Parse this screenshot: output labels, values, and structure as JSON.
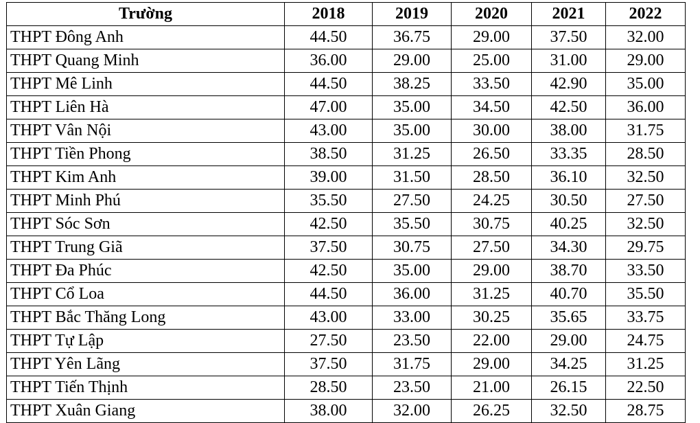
{
  "table": {
    "headers": [
      "Trường",
      "2018",
      "2019",
      "2020",
      "2021",
      "2022"
    ],
    "rows": [
      [
        "THPT Đông Anh",
        "44.50",
        "36.75",
        "29.00",
        "37.50",
        "32.00"
      ],
      [
        "THPT Quang Minh",
        "36.00",
        "29.00",
        "25.00",
        "31.00",
        "29.00"
      ],
      [
        "THPT Mê Linh",
        "44.50",
        "38.25",
        "33.50",
        "42.90",
        "35.00"
      ],
      [
        "THPT Liên Hà",
        "47.00",
        "35.00",
        "34.50",
        "42.50",
        "36.00"
      ],
      [
        "THPT Vân Nội",
        "43.00",
        "35.00",
        "30.00",
        "38.00",
        "31.75"
      ],
      [
        "THPT Tiền Phong",
        "38.50",
        "31.25",
        "26.50",
        "33.35",
        "28.50"
      ],
      [
        "THPT Kim Anh",
        "39.00",
        "31.50",
        "28.50",
        "36.10",
        "32.50"
      ],
      [
        "THPT Minh Phú",
        "35.50",
        "27.50",
        "24.25",
        "30.50",
        "27.50"
      ],
      [
        "THPT Sóc Sơn",
        "42.50",
        "35.50",
        "30.75",
        "40.25",
        "32.50"
      ],
      [
        "THPT Trung Giã",
        "37.50",
        "30.75",
        "27.50",
        "34.30",
        "29.75"
      ],
      [
        "THPT Đa Phúc",
        "42.50",
        "35.00",
        "29.00",
        "38.70",
        "33.50"
      ],
      [
        "THPT Cổ Loa",
        "44.50",
        "36.00",
        "31.25",
        "40.70",
        "35.50"
      ],
      [
        "THPT Bắc Thăng Long",
        "43.00",
        "33.00",
        "30.25",
        "35.65",
        "33.75"
      ],
      [
        "THPT Tự Lập",
        "27.50",
        "23.50",
        "22.00",
        "29.00",
        "24.75"
      ],
      [
        "THPT Yên Lãng",
        "37.50",
        "31.75",
        "29.00",
        "34.25",
        "31.25"
      ],
      [
        "THPT Tiến Thịnh",
        "28.50",
        "23.50",
        "21.00",
        "26.15",
        "22.50"
      ],
      [
        "THPT Xuân Giang",
        "38.00",
        "32.00",
        "26.25",
        "32.50",
        "28.75"
      ]
    ]
  }
}
